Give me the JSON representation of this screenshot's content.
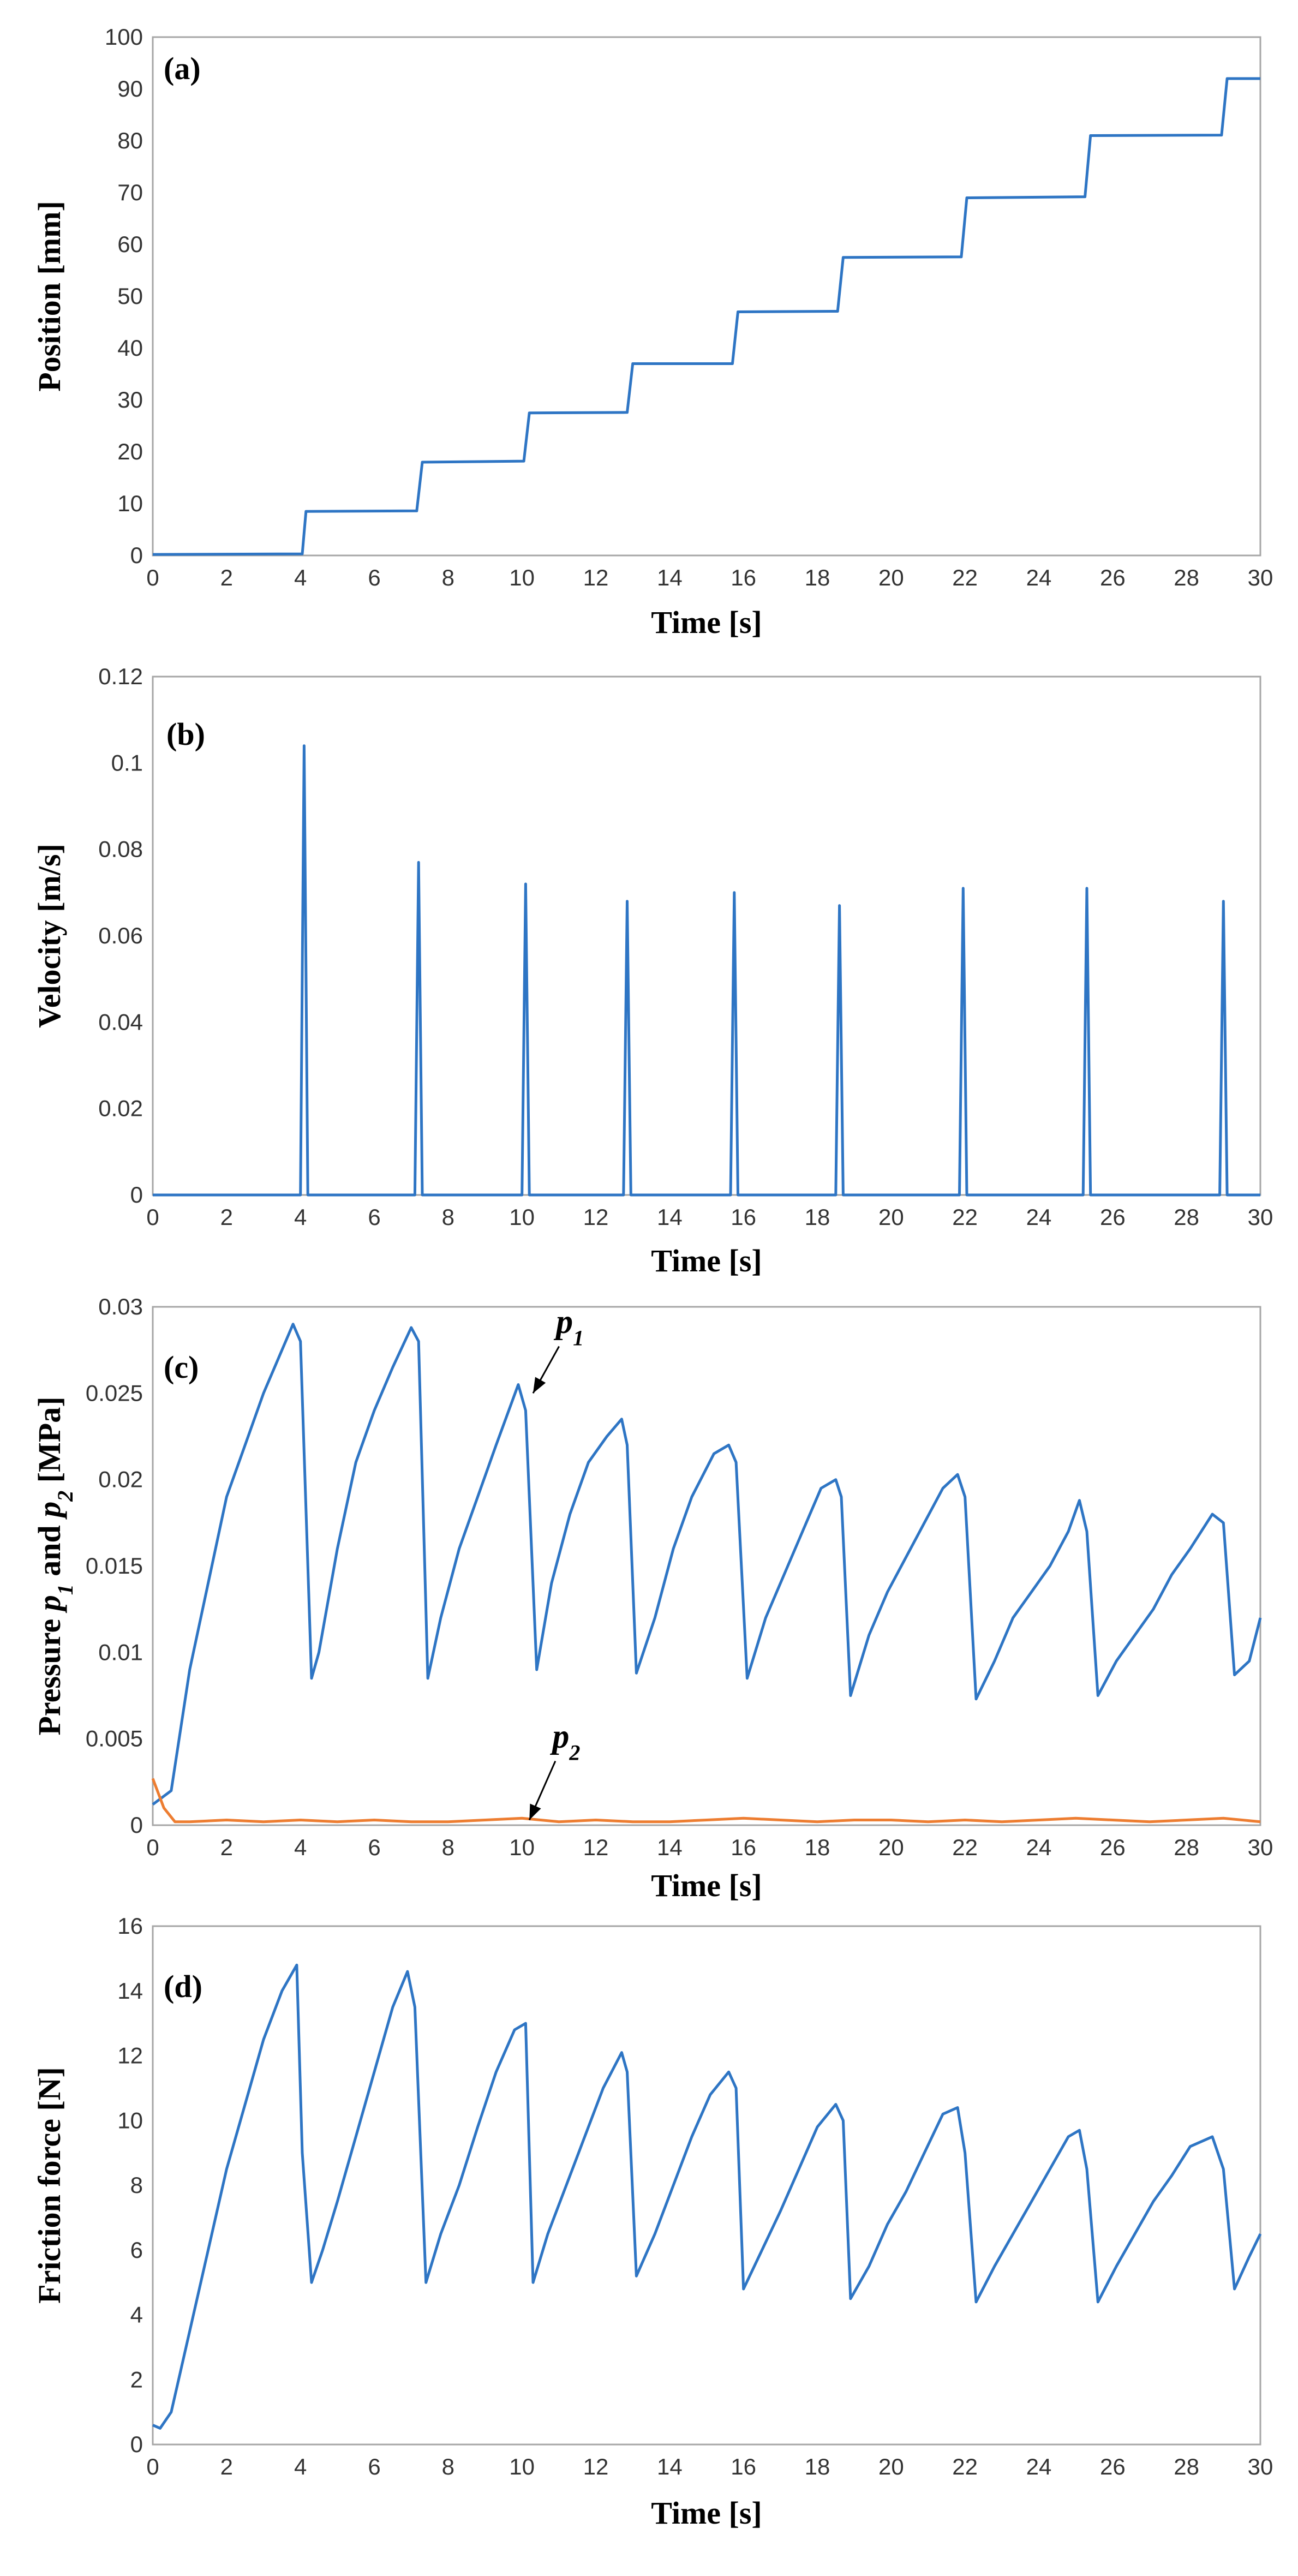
{
  "figure": {
    "panels": [
      "a",
      "b",
      "c",
      "d"
    ]
  },
  "colors": {
    "series_blue": "#2E75C4",
    "series_orange": "#ED7D31",
    "frame": "#A6A6A6",
    "tick_text": "#333333"
  },
  "chart_data": [
    {
      "id": "a",
      "type": "line",
      "panel_label": "(a)",
      "xlabel": "Time [s]",
      "ylabel": "Position [mm]",
      "xlim": [
        0,
        30
      ],
      "ylim": [
        0,
        100
      ],
      "xticks": [
        0,
        2,
        4,
        6,
        8,
        10,
        12,
        14,
        16,
        18,
        20,
        22,
        24,
        26,
        28,
        30
      ],
      "yticks": [
        0,
        10,
        20,
        30,
        40,
        50,
        60,
        70,
        80,
        90,
        100
      ],
      "ytick_labels": [
        "0",
        "10",
        "20",
        "30",
        "40",
        "50",
        "60",
        "70",
        "80",
        "90",
        "100"
      ],
      "series": [
        {
          "name": "Position",
          "color": "#2E75C4",
          "x": [
            0,
            4.05,
            4.15,
            7.15,
            7.3,
            10.05,
            10.2,
            12.85,
            13.0,
            15.7,
            15.85,
            18.55,
            18.7,
            21.9,
            22.05,
            25.25,
            25.4,
            28.95,
            29.1,
            30
          ],
          "y": [
            0.2,
            0.3,
            8.5,
            8.6,
            18.0,
            18.2,
            27.5,
            27.6,
            37.0,
            37.0,
            47.0,
            47.1,
            57.5,
            57.6,
            69.0,
            69.2,
            81.0,
            81.1,
            92.0,
            92.0
          ]
        }
      ]
    },
    {
      "id": "b",
      "type": "line",
      "panel_label": "(b)",
      "xlabel": "Time [s]",
      "ylabel": "Velocity [m/s]",
      "xlim": [
        0,
        30
      ],
      "ylim": [
        0,
        0.12
      ],
      "xticks": [
        0,
        2,
        4,
        6,
        8,
        10,
        12,
        14,
        16,
        18,
        20,
        22,
        24,
        26,
        28,
        30
      ],
      "yticks": [
        0,
        0.02,
        0.04,
        0.06,
        0.08,
        0.1,
        0.12
      ],
      "ytick_labels": [
        "0",
        "0.02",
        "0.04",
        "0.06",
        "0.08",
        "0.1",
        "0.12"
      ],
      "series": [
        {
          "name": "Velocity",
          "color": "#2E75C4",
          "x": [
            0,
            4.0,
            4.1,
            4.2,
            7.1,
            7.2,
            7.3,
            10.0,
            10.1,
            10.2,
            12.75,
            12.85,
            12.95,
            15.65,
            15.75,
            15.85,
            18.5,
            18.6,
            18.7,
            21.85,
            21.95,
            22.05,
            25.2,
            25.3,
            25.4,
            28.9,
            29.0,
            29.1,
            30
          ],
          "y": [
            0,
            0,
            0.104,
            0,
            0,
            0.077,
            0,
            0,
            0.072,
            0,
            0,
            0.068,
            0,
            0,
            0.07,
            0,
            0,
            0.067,
            0,
            0,
            0.071,
            0,
            0,
            0.071,
            0,
            0,
            0.068,
            0,
            0
          ]
        }
      ]
    },
    {
      "id": "c",
      "type": "line",
      "panel_label": "(c)",
      "xlabel": "Time [s]",
      "ylabel": {
        "prefix": "Pressure ",
        "p1": "p",
        "p1_sub": "1",
        "mid": " and ",
        "p2": "p",
        "p2_sub": "2",
        "suffix": " [MPa]"
      },
      "xlim": [
        0,
        30
      ],
      "ylim": [
        0,
        0.03
      ],
      "xticks": [
        0,
        2,
        4,
        6,
        8,
        10,
        12,
        14,
        16,
        18,
        20,
        22,
        24,
        26,
        28,
        30
      ],
      "yticks": [
        0,
        0.005,
        0.01,
        0.015,
        0.02,
        0.025,
        0.03
      ],
      "ytick_labels": [
        "0",
        "0.005",
        "0.01",
        "0.015",
        "0.02",
        "0.025",
        "0.03"
      ],
      "annotations": [
        {
          "text": "p",
          "sub": "1",
          "series": "p1",
          "at_x": 10.3,
          "at_y": 0.025,
          "label_x": 11.3,
          "label_y": 0.0285
        },
        {
          "text": "p",
          "sub": "2",
          "series": "p2",
          "at_x": 10.2,
          "at_y": 0.0003,
          "label_x": 11.2,
          "label_y": 0.0045
        }
      ],
      "series": [
        {
          "name": "p1",
          "color": "#2E75C4",
          "x": [
            0,
            0.5,
            1.0,
            1.5,
            2.0,
            2.5,
            3.0,
            3.5,
            3.8,
            4.0,
            4.3,
            4.5,
            5.0,
            5.5,
            6.0,
            6.5,
            7.0,
            7.2,
            7.45,
            7.8,
            8.3,
            8.8,
            9.3,
            9.9,
            10.1,
            10.4,
            10.8,
            11.3,
            11.8,
            12.3,
            12.7,
            12.85,
            13.1,
            13.6,
            14.1,
            14.6,
            15.2,
            15.6,
            15.8,
            16.1,
            16.6,
            17.1,
            17.6,
            18.1,
            18.5,
            18.65,
            18.9,
            19.4,
            19.9,
            20.4,
            20.9,
            21.4,
            21.8,
            22.0,
            22.3,
            22.8,
            23.3,
            23.8,
            24.3,
            24.8,
            25.1,
            25.3,
            25.6,
            26.1,
            26.6,
            27.1,
            27.6,
            28.1,
            28.7,
            29.0,
            29.3,
            29.7,
            30.0
          ],
          "y": [
            0.0012,
            0.002,
            0.009,
            0.014,
            0.019,
            0.022,
            0.025,
            0.0275,
            0.029,
            0.028,
            0.0085,
            0.01,
            0.016,
            0.021,
            0.024,
            0.0265,
            0.0288,
            0.028,
            0.0085,
            0.012,
            0.016,
            0.019,
            0.022,
            0.0255,
            0.024,
            0.009,
            0.014,
            0.018,
            0.021,
            0.0225,
            0.0235,
            0.022,
            0.0088,
            0.012,
            0.016,
            0.019,
            0.0215,
            0.022,
            0.021,
            0.0085,
            0.012,
            0.0145,
            0.017,
            0.0195,
            0.02,
            0.019,
            0.0075,
            0.011,
            0.0135,
            0.0155,
            0.0175,
            0.0195,
            0.0203,
            0.019,
            0.0073,
            0.0095,
            0.012,
            0.0135,
            0.015,
            0.017,
            0.0188,
            0.017,
            0.0075,
            0.0095,
            0.011,
            0.0125,
            0.0145,
            0.016,
            0.018,
            0.0175,
            0.0087,
            0.0095,
            0.012
          ]
        },
        {
          "name": "p2",
          "color": "#ED7D31",
          "x": [
            0,
            0.3,
            0.6,
            1,
            2,
            3,
            4,
            5,
            6,
            7,
            8,
            9,
            10,
            11,
            12,
            13,
            14,
            15,
            16,
            17,
            18,
            19,
            20,
            21,
            22,
            23,
            24,
            25,
            26,
            27,
            28,
            29,
            30
          ],
          "y": [
            0.0027,
            0.001,
            0.0002,
            0.0002,
            0.0003,
            0.0002,
            0.0003,
            0.0002,
            0.0003,
            0.0002,
            0.0002,
            0.0003,
            0.0004,
            0.0002,
            0.0003,
            0.0002,
            0.0002,
            0.0003,
            0.0004,
            0.0003,
            0.0002,
            0.0003,
            0.0003,
            0.0002,
            0.0003,
            0.0002,
            0.0003,
            0.0004,
            0.0003,
            0.0002,
            0.0003,
            0.0004,
            0.0002
          ]
        }
      ]
    },
    {
      "id": "d",
      "type": "line",
      "panel_label": "(d)",
      "xlabel": "Time [s]",
      "ylabel": "Friction force [N]",
      "xlim": [
        0,
        30
      ],
      "ylim": [
        0,
        16
      ],
      "xticks": [
        0,
        2,
        4,
        6,
        8,
        10,
        12,
        14,
        16,
        18,
        20,
        22,
        24,
        26,
        28,
        30
      ],
      "yticks": [
        0,
        2,
        4,
        6,
        8,
        10,
        12,
        14,
        16
      ],
      "ytick_labels": [
        "0",
        "2",
        "4",
        "6",
        "8",
        "10",
        "12",
        "14",
        "16"
      ],
      "series": [
        {
          "name": "Friction force",
          "color": "#2E75C4",
          "x": [
            0,
            0.2,
            0.5,
            1.0,
            1.5,
            2.0,
            2.5,
            3.0,
            3.5,
            3.9,
            4.05,
            4.3,
            4.6,
            5.0,
            5.5,
            6.0,
            6.5,
            6.9,
            7.1,
            7.4,
            7.8,
            8.3,
            8.8,
            9.3,
            9.8,
            10.1,
            10.3,
            10.7,
            11.2,
            11.7,
            12.2,
            12.7,
            12.85,
            13.1,
            13.6,
            14.1,
            14.6,
            15.1,
            15.6,
            15.8,
            16.0,
            16.5,
            17.0,
            17.5,
            18.0,
            18.5,
            18.7,
            18.9,
            19.4,
            19.9,
            20.4,
            20.9,
            21.4,
            21.8,
            22.0,
            22.3,
            22.8,
            23.3,
            23.8,
            24.3,
            24.8,
            25.1,
            25.3,
            25.6,
            26.1,
            26.6,
            27.1,
            27.6,
            28.1,
            28.7,
            29.0,
            29.3,
            29.7,
            30.0
          ],
          "y": [
            0.6,
            0.5,
            1.0,
            3.5,
            6.0,
            8.5,
            10.5,
            12.5,
            14.0,
            14.8,
            9.0,
            5.0,
            6.0,
            7.5,
            9.5,
            11.5,
            13.5,
            14.6,
            13.5,
            5.0,
            6.5,
            8.0,
            9.8,
            11.5,
            12.8,
            13.0,
            5.0,
            6.5,
            8.0,
            9.5,
            11.0,
            12.1,
            11.5,
            5.2,
            6.5,
            8.0,
            9.5,
            10.8,
            11.5,
            11.0,
            4.8,
            6.0,
            7.2,
            8.5,
            9.8,
            10.5,
            10.0,
            4.5,
            5.5,
            6.8,
            7.8,
            9.0,
            10.2,
            10.4,
            9.0,
            4.4,
            5.5,
            6.5,
            7.5,
            8.5,
            9.5,
            9.7,
            8.5,
            4.4,
            5.5,
            6.5,
            7.5,
            8.3,
            9.2,
            9.5,
            8.5,
            4.8,
            5.8,
            6.5
          ]
        }
      ]
    }
  ]
}
